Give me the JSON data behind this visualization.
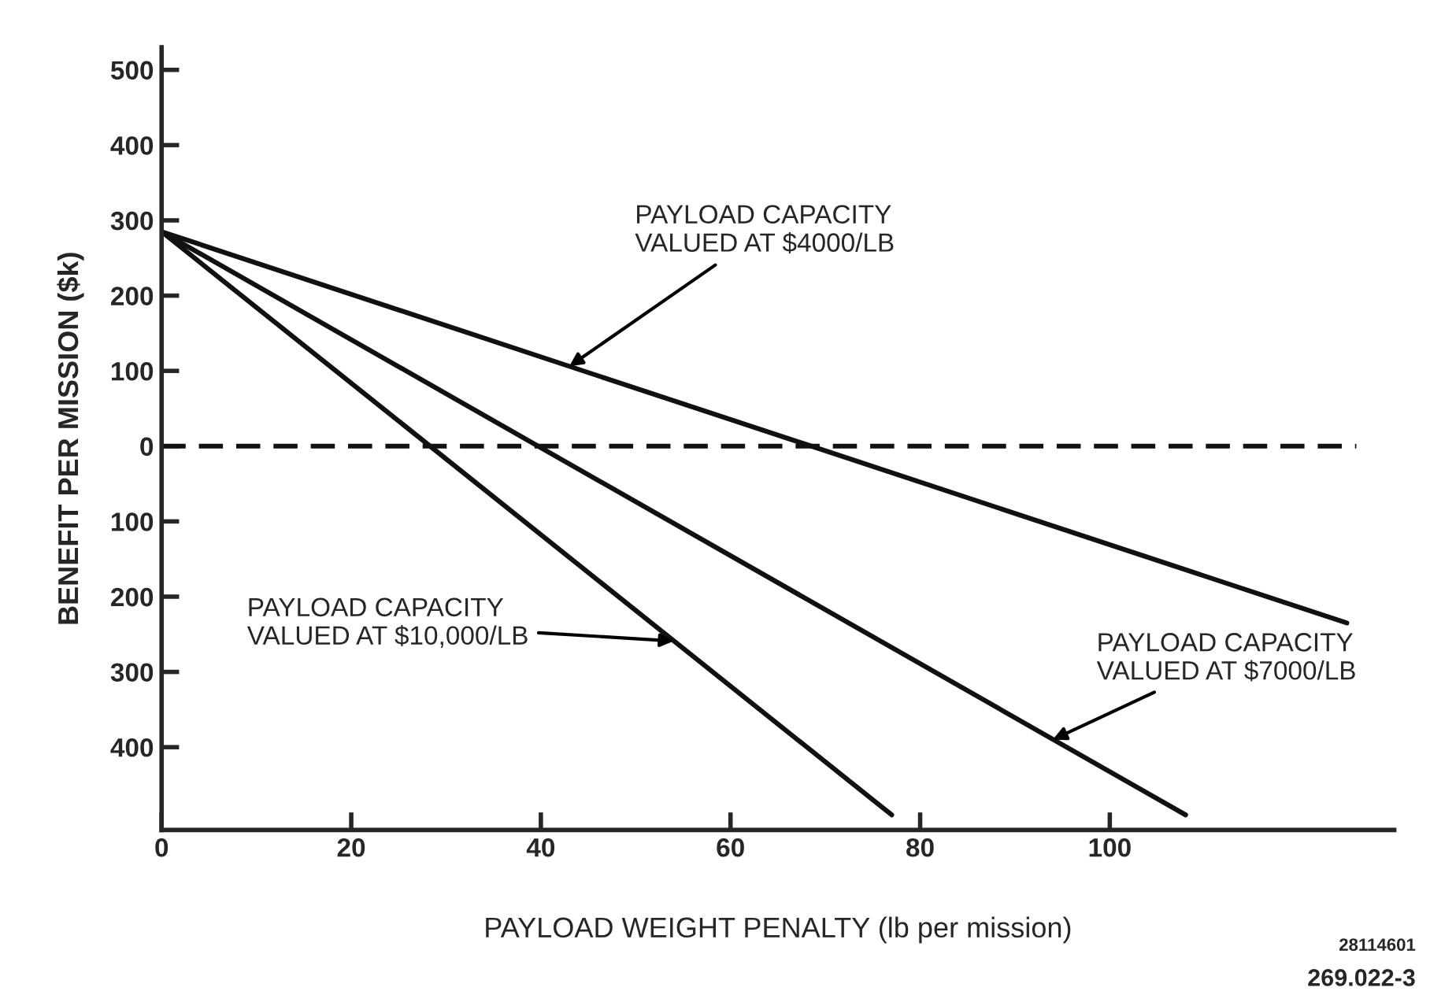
{
  "chart_data": {
    "type": "line",
    "xlabel": "PAYLOAD WEIGHT PENALTY (lb per mission)",
    "ylabel": "BENEFIT PER MISSION ($k)",
    "series": [
      {
        "color": "#111111",
        "x": [
          0,
          125
        ],
        "values": [
          285,
          -235
        ]
      },
      {
        "color": "#111111",
        "x": [
          0,
          108
        ],
        "values": [
          285,
          -490
        ]
      },
      {
        "color": "#111111",
        "x": [
          0,
          77
        ],
        "values": [
          285,
          -490
        ]
      },
      {
        "color": "#111111",
        "x": [
          0,
          126
        ],
        "values": [
          0,
          0
        ],
        "line_style": "dashed"
      }
    ],
    "xlim": [
      0,
      130
    ],
    "ylim": [
      -510,
      530
    ],
    "xticks": [
      0,
      20,
      40,
      60,
      80,
      100
    ],
    "yticks": [
      {
        "value": -400,
        "label": "400"
      },
      {
        "value": -300,
        "label": "300"
      },
      {
        "value": -200,
        "label": "200"
      },
      {
        "value": -100,
        "label": "100"
      },
      0,
      100,
      200,
      300,
      400,
      500
    ],
    "grid": false,
    "marker": "none",
    "line_style": "solid",
    "annotations": [
      {
        "text": "PAYLOAD CAPACITY\nVALUED AT $4000/LB",
        "x": 43,
        "y": 106
      },
      {
        "text": "PAYLOAD CAPACITY\nVALUED AT $10,000/LB",
        "x": 54,
        "y": -259
      },
      {
        "text": "PAYLOAD CAPACITY\nVALUED AT $7000/LB",
        "x": 94,
        "y": -390
      },
      "28114601",
      "269.022-3"
    ]
  }
}
